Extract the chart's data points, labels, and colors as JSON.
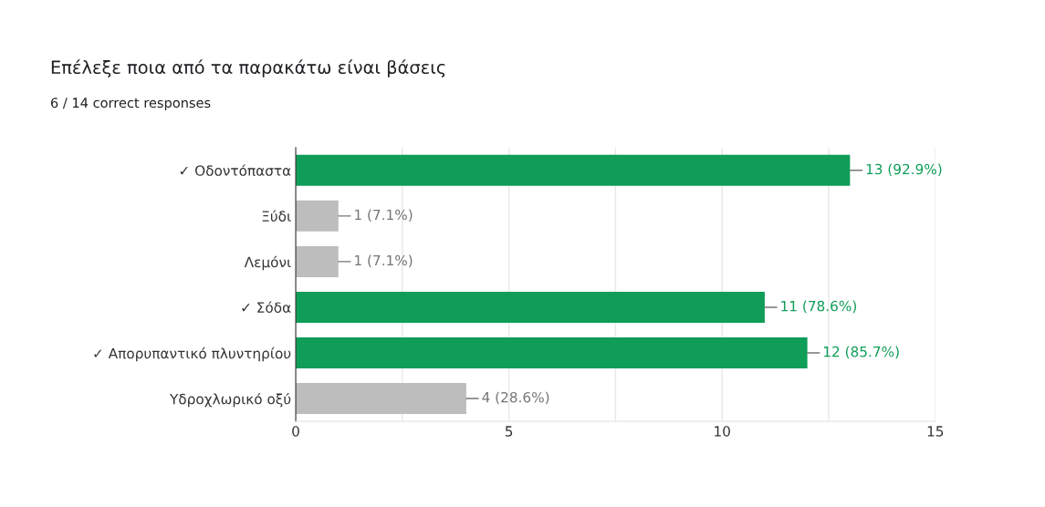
{
  "chart_data": {
    "type": "bar",
    "orientation": "horizontal",
    "title": "Επέλεξε ποια από τα παρακάτω είναι βάσεις",
    "subtitle": "6 / 14 correct responses",
    "categories": [
      "✓ Οδοντόπαστα",
      "Ξύδι",
      "Λεμόνι",
      "✓ Σόδα",
      "✓ Απορυπαντικό πλυντηρίου",
      "Υδροχλωρικό οξύ"
    ],
    "values": [
      13,
      1,
      1,
      11,
      12,
      4
    ],
    "colors": [
      "#0f9d58",
      "#bdbdbd",
      "#bdbdbd",
      "#0f9d58",
      "#0f9d58",
      "#bdbdbd"
    ],
    "value_labels": [
      "13 (92.9%)",
      "1 (7.1%)",
      "1 (7.1%)",
      "11 (78.6%)",
      "12 (85.7%)",
      "4 (28.6%)"
    ],
    "xlim": [
      0,
      15
    ],
    "xticks": [
      0,
      {
        "value": 2.5,
        "label": null
      },
      5,
      {
        "value": 7.5,
        "label": null
      },
      10,
      {
        "value": 12.5,
        "label": null
      },
      15
    ],
    "grid": "x",
    "legend": false
  }
}
